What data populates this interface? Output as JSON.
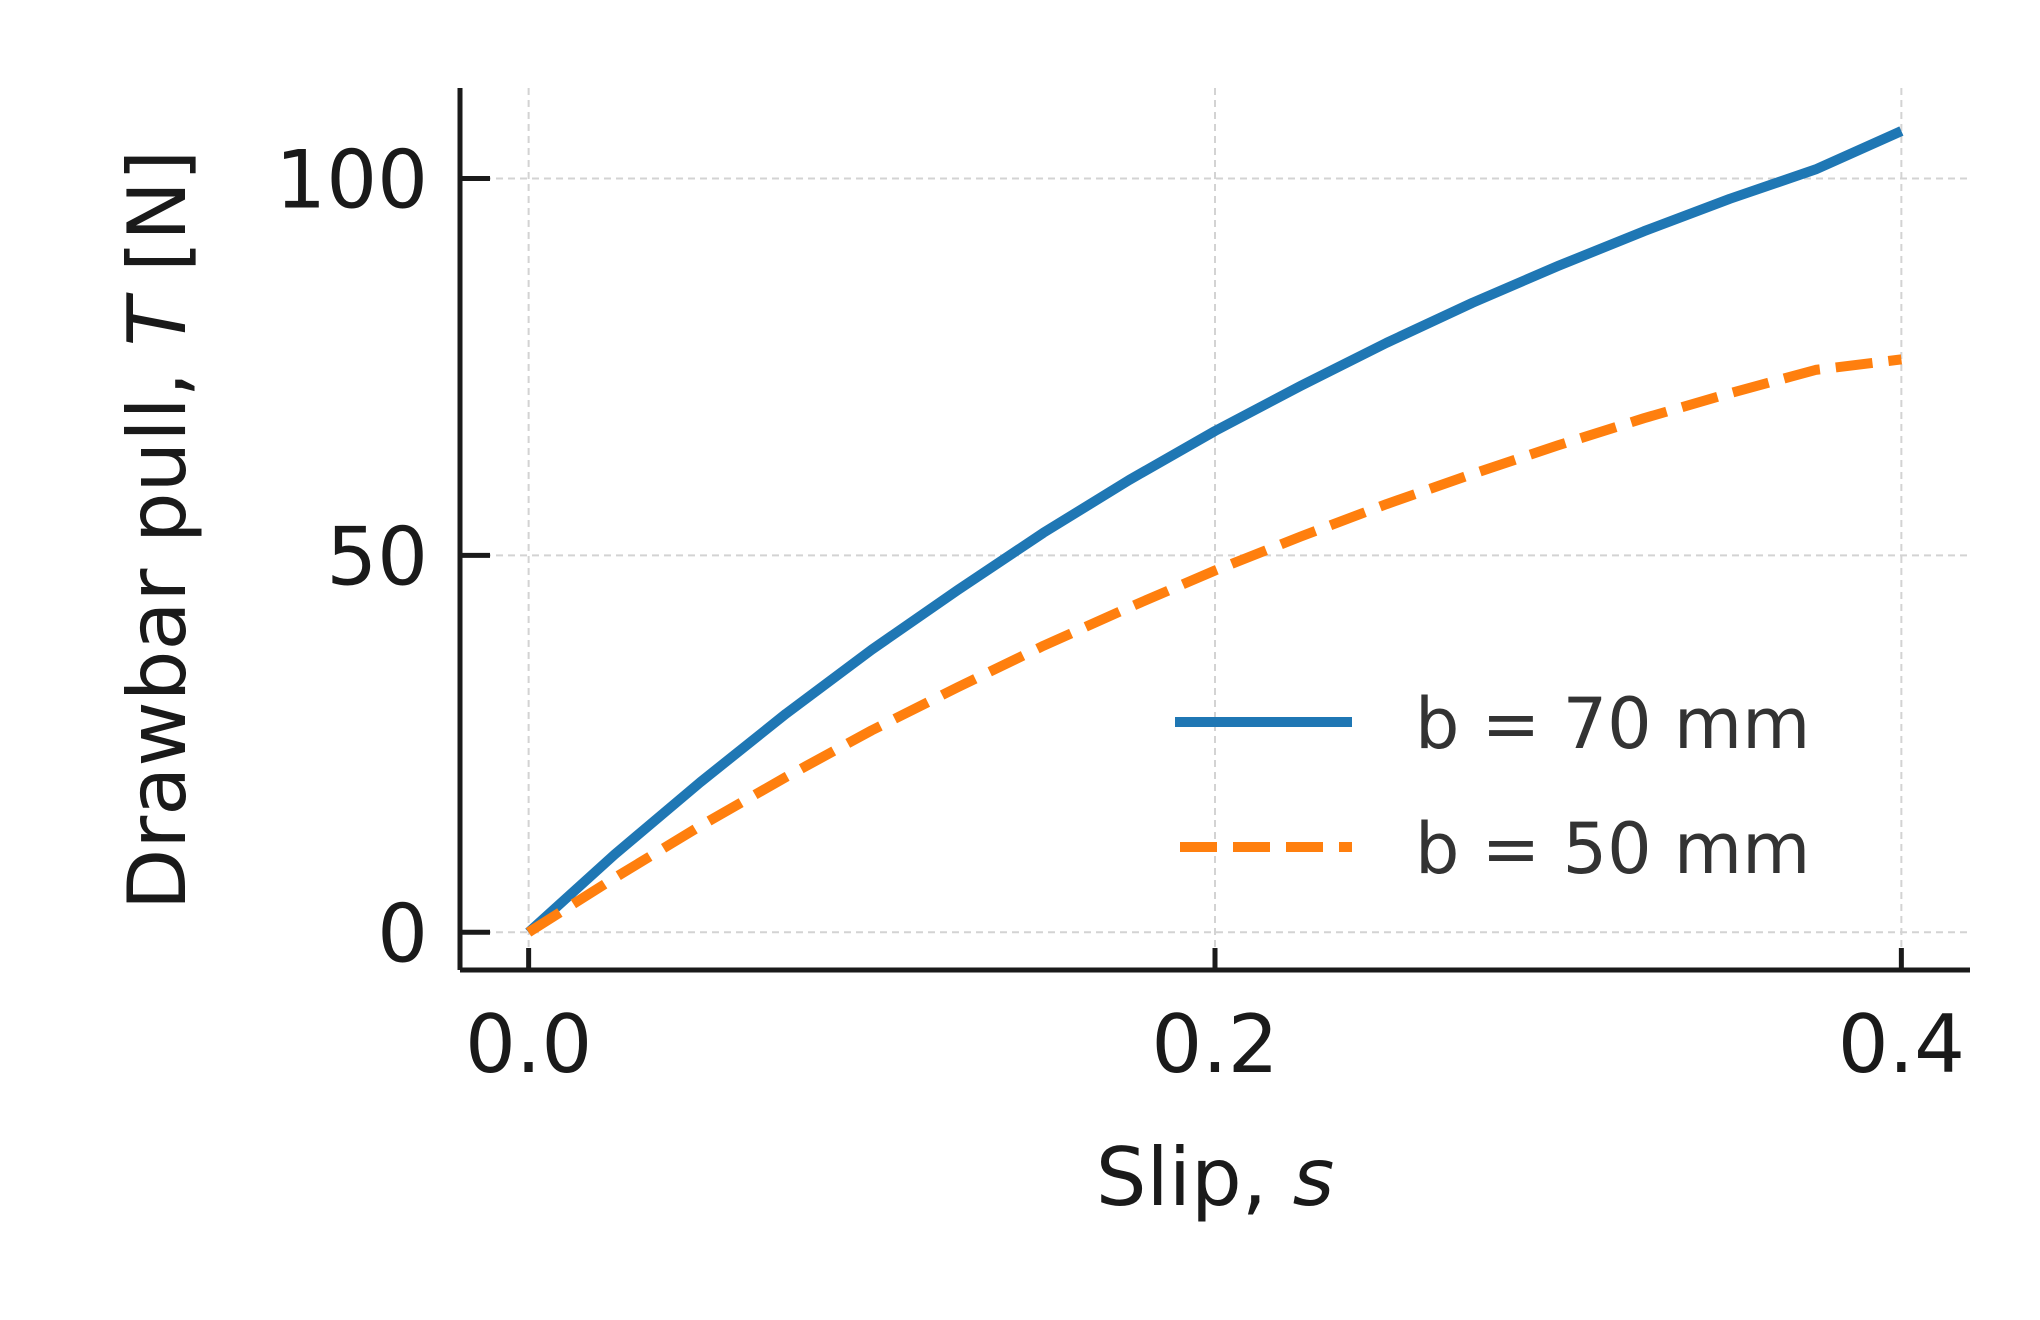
{
  "chart_data": {
    "type": "line",
    "xlabel": "Slip, ",
    "xlabel_var": "s",
    "ylabel": "Drawbar pull, ",
    "ylabel_var": "T",
    "ylabel_unit": " [N]",
    "xlim": [
      -0.02,
      0.42
    ],
    "ylim": [
      -5,
      112
    ],
    "xticks": [
      0.0,
      0.2,
      0.4
    ],
    "xtick_labels": [
      "0.0",
      "0.2",
      "0.4"
    ],
    "yticks": [
      0,
      50,
      100
    ],
    "ytick_labels": [
      "0",
      "50",
      "100"
    ],
    "grid": true,
    "legend_position": "lower-right",
    "series": [
      {
        "name": "b = 70 mm",
        "color": "#1f77b4",
        "style": "solid",
        "x": [
          0.0,
          0.025,
          0.05,
          0.075,
          0.1,
          0.125,
          0.15,
          0.175,
          0.2,
          0.225,
          0.25,
          0.275,
          0.3,
          0.325,
          0.35,
          0.375,
          0.4
        ],
        "y": [
          0.0,
          10.3,
          19.9,
          29.0,
          37.5,
          45.4,
          53.0,
          60.0,
          66.5,
          72.5,
          78.2,
          83.5,
          88.4,
          93.0,
          97.3,
          101.2,
          106.3
        ]
      },
      {
        "name": "b = 50 mm",
        "color": "#ff7f0e",
        "style": "dashed",
        "x": [
          0.0,
          0.025,
          0.05,
          0.075,
          0.1,
          0.125,
          0.15,
          0.175,
          0.2,
          0.225,
          0.25,
          0.275,
          0.3,
          0.325,
          0.35,
          0.375,
          0.4
        ],
        "y": [
          0.0,
          7.2,
          14.1,
          20.6,
          26.8,
          32.5,
          38.0,
          43.1,
          48.0,
          52.5,
          56.8,
          60.8,
          64.6,
          68.2,
          71.5,
          74.6,
          76.0
        ]
      }
    ]
  }
}
